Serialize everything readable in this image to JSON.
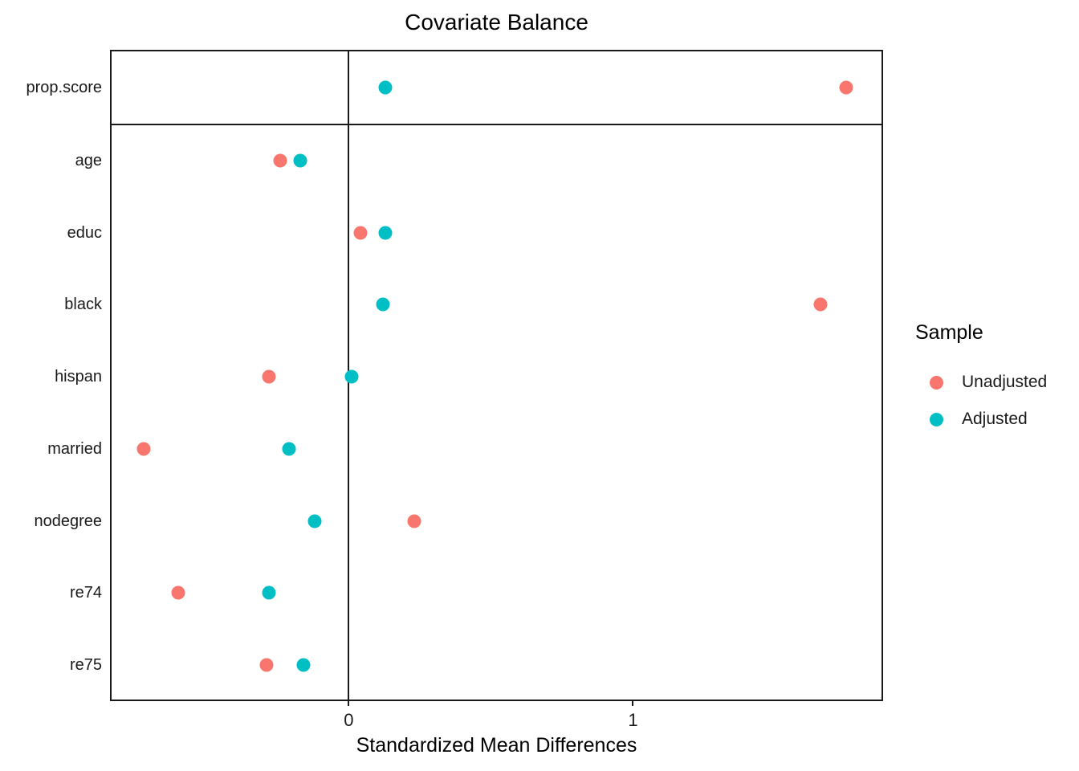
{
  "chart_data": {
    "type": "scatter",
    "title": "Covariate Balance",
    "xlabel": "Standardized Mean Differences",
    "categories": [
      "prop.score",
      "age",
      "educ",
      "black",
      "hispan",
      "married",
      "nodegree",
      "re74",
      "re75"
    ],
    "top_facet_rows": 1,
    "xlim": [
      -0.84,
      1.88
    ],
    "x_ticks": [
      0,
      1
    ],
    "zero_line_x": 0,
    "grid": false,
    "legend": {
      "title": "Sample",
      "position": "right"
    },
    "series": [
      {
        "name": "Unadjusted",
        "color": "#F8766D",
        "values": [
          1.75,
          -0.24,
          0.04,
          1.66,
          -0.28,
          -0.72,
          0.23,
          -0.6,
          -0.29
        ]
      },
      {
        "name": "Adjusted",
        "color": "#00BFC4",
        "values": [
          0.13,
          -0.17,
          0.13,
          0.12,
          0.01,
          -0.21,
          -0.12,
          -0.28,
          -0.16
        ]
      }
    ]
  }
}
